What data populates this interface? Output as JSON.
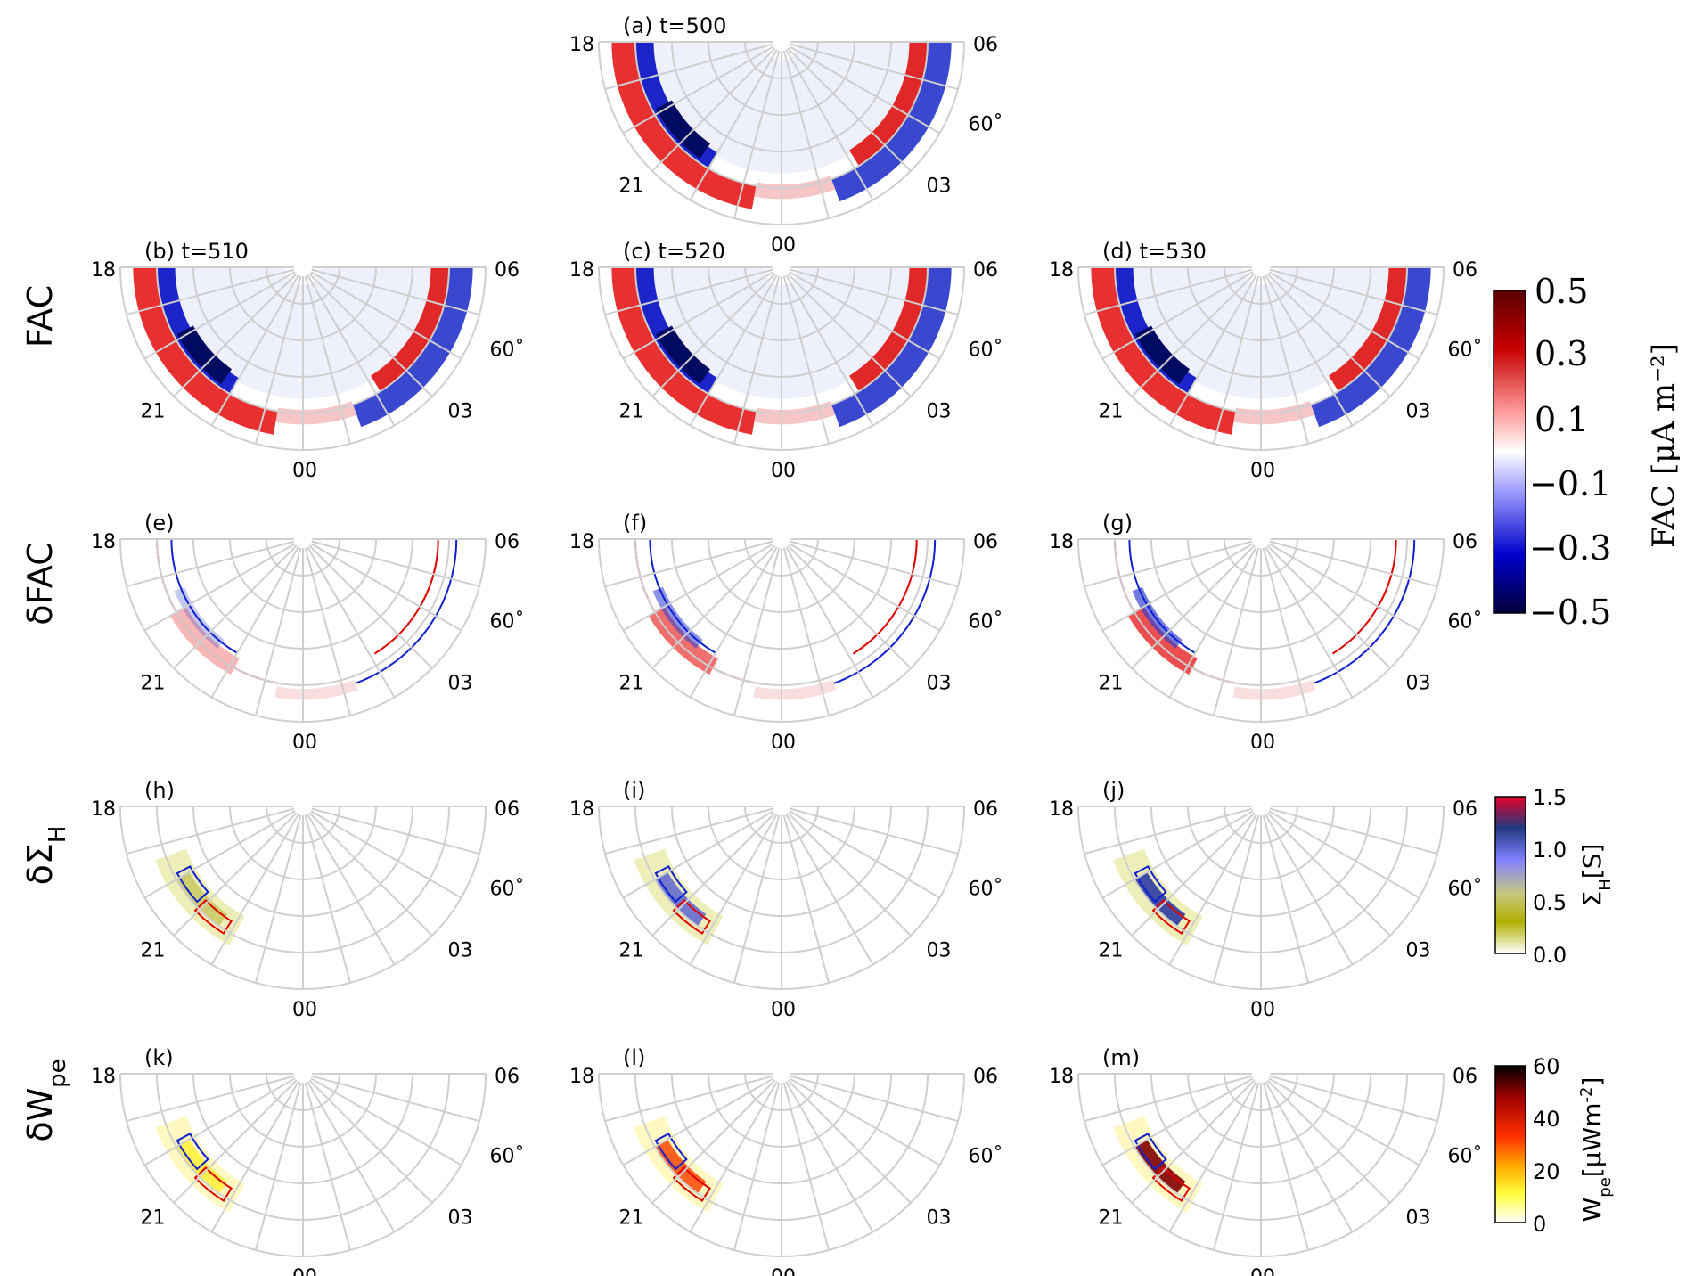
{
  "chart_data": {
    "type": "heatmap",
    "projection": "polar half-disk (night side)",
    "rows": [
      {
        "label": "FAC",
        "panels": [
          {
            "id": "a",
            "label": "(a) t=500",
            "t": 500
          },
          {
            "id": "b",
            "label": "(b) t=510",
            "t": 510
          },
          {
            "id": "c",
            "label": "(c) t=520",
            "t": 520
          },
          {
            "id": "d",
            "label": "(d) t=530",
            "t": 530
          }
        ]
      },
      {
        "label": "δFAC",
        "panels": [
          {
            "id": "e",
            "label": "(e)"
          },
          {
            "id": "f",
            "label": "(f)"
          },
          {
            "id": "g",
            "label": "(g)"
          }
        ]
      },
      {
        "label": "δΣ",
        "sub": "H",
        "panels": [
          {
            "id": "h",
            "label": "(h)"
          },
          {
            "id": "i",
            "label": "(i)"
          },
          {
            "id": "j",
            "label": "(j)"
          }
        ]
      },
      {
        "label": "δW",
        "sub": "pe",
        "panels": [
          {
            "id": "k",
            "label": "(k)"
          },
          {
            "id": "l",
            "label": "(l)"
          },
          {
            "id": "m",
            "label": "(m)"
          }
        ]
      }
    ],
    "hour_labels": {
      "dusk": "18",
      "pre_midnight": "21",
      "midnight": "00",
      "post_midnight": "03",
      "dawn": "06"
    },
    "lat_label": "60˚",
    "colorbars": [
      {
        "name": "FAC",
        "title": "FAC [μA m⁻²]",
        "ticks": [
          "0.5",
          "0.3",
          "0.1",
          "−0.1",
          "−0.3",
          "−0.5"
        ],
        "range": [
          -0.5,
          0.5
        ],
        "colors": [
          "#5a0000",
          "#c80000",
          "#ff9e9e",
          "#ffffff",
          "#9e9eff",
          "#0000cc",
          "#00003a"
        ]
      },
      {
        "name": "SigmaH",
        "title": "Σ",
        "title_sub": "H",
        "title_unit": "[S]",
        "ticks": [
          "1.5",
          "1.0",
          "0.5",
          "0.0"
        ],
        "range": [
          0,
          1.5
        ],
        "colors": [
          "#e8002a",
          "#203a80",
          "#8080ff",
          "#c8c880",
          "#b0b000",
          "#ffffff"
        ]
      },
      {
        "name": "Wpe",
        "title": "W",
        "title_sub": "pe",
        "title_unit": "[μWm",
        "title_sup": "-2",
        "title_close": "]",
        "ticks": [
          "60",
          "40",
          "20",
          "0"
        ],
        "range": [
          0,
          60
        ],
        "colors": [
          "#000000",
          "#a00000",
          "#ff3000",
          "#ffb000",
          "#ffff40",
          "#ffffff"
        ]
      }
    ]
  }
}
